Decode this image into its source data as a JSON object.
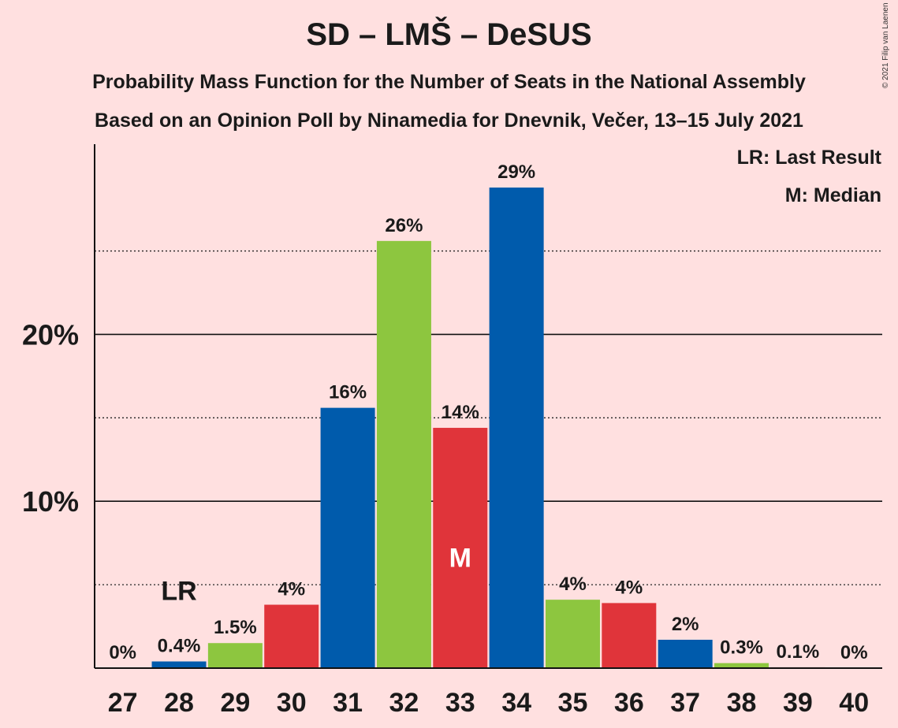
{
  "header": {
    "title": "SD – LMŠ – DeSUS",
    "subtitle1": "Probability Mass Function for the Number of Seats in the National Assembly",
    "subtitle2": "Based on an Opinion Poll by Ninamedia for Dnevnik, Večer, 13–15 July 2021",
    "copyright": "© 2021 Filip van Laenen"
  },
  "legend": {
    "lr": "LR: Last Result",
    "m": "M: Median"
  },
  "chart_data": {
    "type": "bar",
    "categories": [
      "27",
      "28",
      "29",
      "30",
      "31",
      "32",
      "33",
      "34",
      "35",
      "36",
      "37",
      "38",
      "39",
      "40"
    ],
    "values": [
      0,
      0.4,
      1.5,
      3.8,
      15.6,
      25.6,
      14.4,
      28.8,
      4.1,
      3.9,
      1.7,
      0.3,
      0.05,
      0
    ],
    "labels": [
      "0%",
      "0.4%",
      "1.5%",
      "4%",
      "16%",
      "26%",
      "14%",
      "29%",
      "4%",
      "4%",
      "2%",
      "0.3%",
      "0.1%",
      "0%"
    ],
    "colors": [
      "#005BAC",
      "#005BAC",
      "#8DC63F",
      "#E0343A",
      "#005BAC",
      "#8DC63F",
      "#E0343A",
      "#005BAC",
      "#8DC63F",
      "#E0343A",
      "#005BAC",
      "#8DC63F",
      "#E0343A",
      "#005BAC"
    ],
    "ylim": [
      0,
      31.4
    ],
    "yticks": [
      {
        "value": 10,
        "label": "10%"
      },
      {
        "value": 20,
        "label": "20%"
      }
    ],
    "minor_gridlines": [
      5,
      15,
      25
    ],
    "last_result": {
      "category": "28",
      "label": "LR"
    },
    "median": {
      "category": "33",
      "label": "M"
    },
    "legend_position": "top-right",
    "grid": true
  }
}
